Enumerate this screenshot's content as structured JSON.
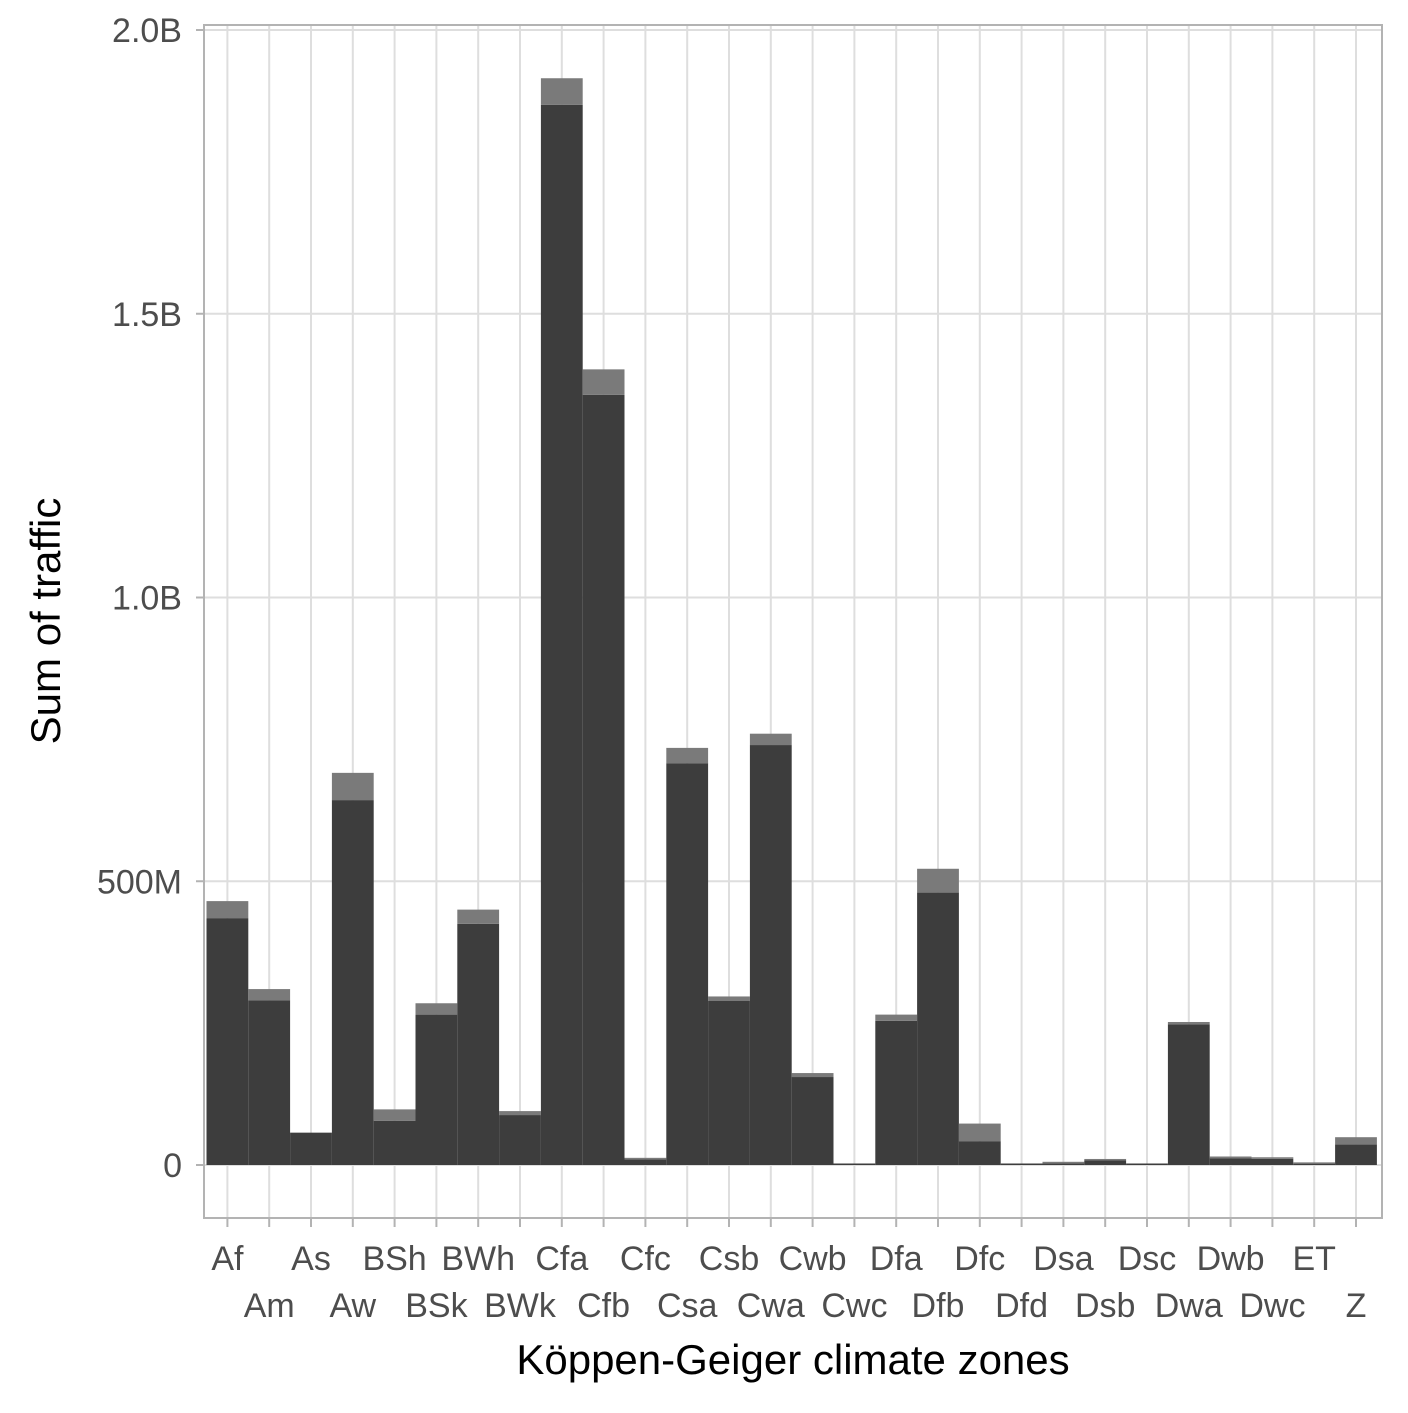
{
  "chart_data": {
    "type": "bar",
    "stacked": true,
    "xlabel": "Köppen-Geiger climate zones",
    "ylabel": "Sum of traffic",
    "ylim": [
      -160000000,
      2000000000
    ],
    "yticks": [
      0,
      500000000,
      1000000000,
      1500000000,
      2000000000
    ],
    "ytick_labels": [
      "0",
      "500M",
      "1.0B",
      "1.5B",
      "2.0B"
    ],
    "categories": [
      "Af",
      "Am",
      "As",
      "Aw",
      "BSh",
      "BSk",
      "BWh",
      "BWk",
      "Cfa",
      "Cfb",
      "Cfc",
      "Csa",
      "Csb",
      "Cwa",
      "Cwb",
      "Cwc",
      "Dfa",
      "Dfb",
      "Dfc",
      "Dfd",
      "Dsa",
      "Dsb",
      "Dsc",
      "Dwa",
      "Dwb",
      "Dwc",
      "ET",
      "Z"
    ],
    "grid": true,
    "legend": "none",
    "series": [
      {
        "color": "#3d3d3d",
        "values": [
          435000000,
          290000000,
          57000000,
          643000000,
          78000000,
          265000000,
          425000000,
          88000000,
          1868000000,
          1357000000,
          10000000,
          708000000,
          289000000,
          740000000,
          155000000,
          2000000,
          254000000,
          480000000,
          42000000,
          1000000,
          3000000,
          8000000,
          1000000,
          248000000,
          12000000,
          11000000,
          2000000,
          36000000
        ]
      },
      {
        "color": "#7a7a7a",
        "values": [
          30000000,
          20000000,
          0,
          48000000,
          20000000,
          20000000,
          25000000,
          7000000,
          47000000,
          45000000,
          2000000,
          27000000,
          8000000,
          20000000,
          7000000,
          0,
          11000000,
          42000000,
          31000000,
          0,
          1000000,
          2000000,
          0,
          4000000,
          3000000,
          2000000,
          1000000,
          13000000
        ]
      }
    ]
  }
}
